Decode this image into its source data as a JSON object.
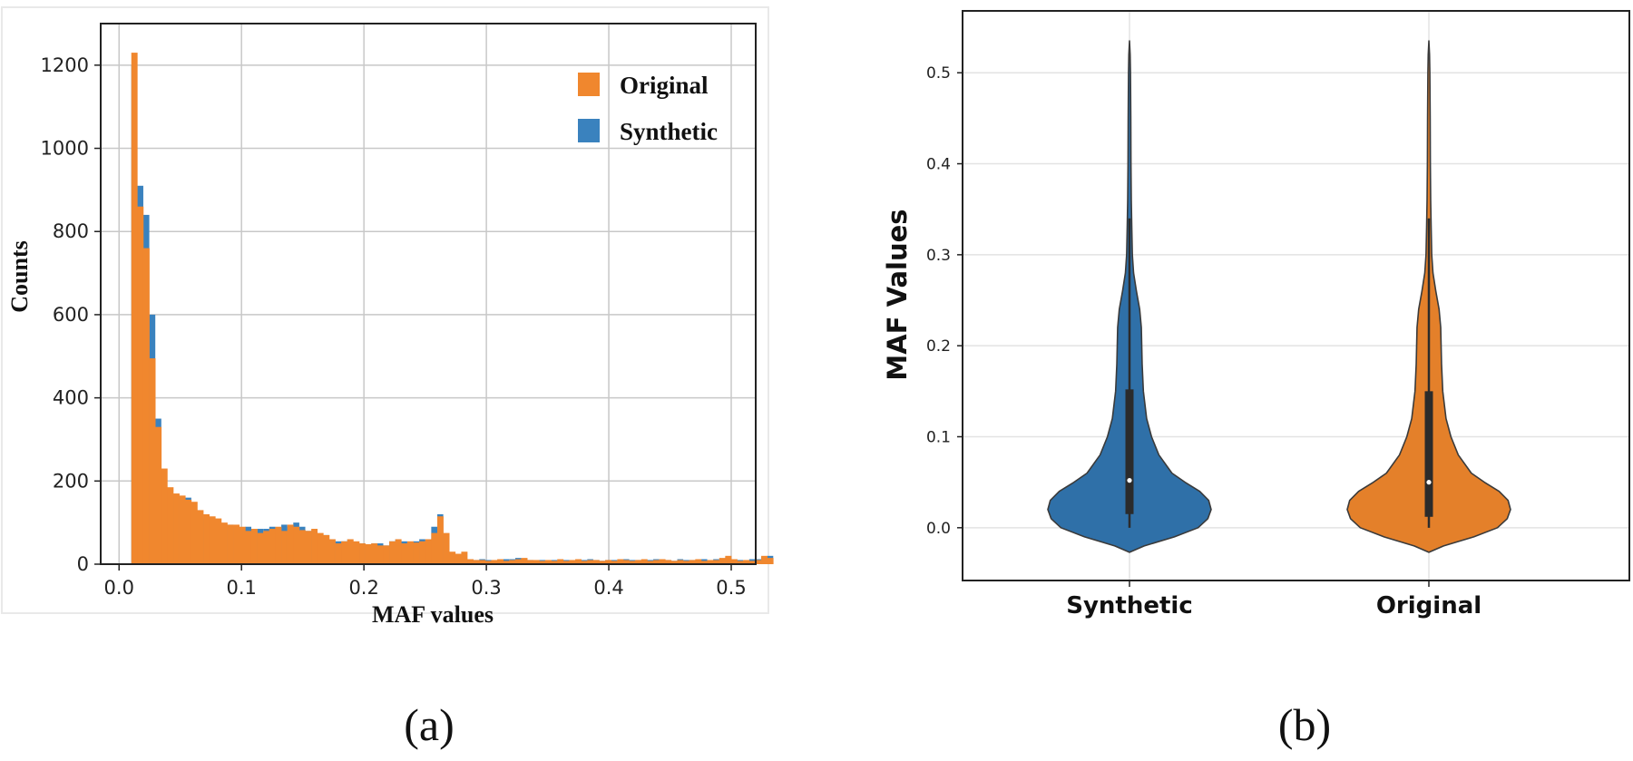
{
  "colors": {
    "original": "#F0872E",
    "synthetic": "#3A82BE",
    "violin_synthetic": "#2F70A8",
    "violin_original": "#E4802A",
    "grid_a": "#c8c8c8",
    "grid_b": "#e3e3e3"
  },
  "chart_data": [
    {
      "panel_label": "(a)",
      "type": "bar",
      "subtype": "overlaid-histogram",
      "title": "",
      "xlabel": "MAF values",
      "ylabel": "Counts",
      "xlim": [
        -0.015,
        0.52
      ],
      "ylim": [
        0,
        1300
      ],
      "xticks": [
        0.0,
        0.1,
        0.2,
        0.3,
        0.4,
        0.5
      ],
      "xtick_labels": [
        "0.0",
        "0.1",
        "0.2",
        "0.3",
        "0.4",
        "0.5"
      ],
      "yticks": [
        0,
        200,
        400,
        600,
        800,
        1000,
        1200
      ],
      "ytick_labels": [
        "0",
        "200",
        "400",
        "600",
        "800",
        "1000",
        "1200"
      ],
      "grid": true,
      "legend_position": "top-right",
      "bin_start": 0.01,
      "bin_width": 0.0049,
      "series": [
        {
          "name": "Original",
          "color_key": "original",
          "values": [
            1230,
            860,
            760,
            495,
            330,
            230,
            185,
            170,
            165,
            155,
            150,
            130,
            120,
            115,
            110,
            100,
            95,
            95,
            90,
            80,
            85,
            75,
            80,
            85,
            90,
            80,
            95,
            90,
            82,
            80,
            85,
            75,
            70,
            60,
            50,
            55,
            60,
            55,
            50,
            48,
            50,
            45,
            45,
            55,
            60,
            50,
            55,
            52,
            55,
            60,
            75,
            115,
            75,
            30,
            25,
            30,
            12,
            10,
            10,
            8,
            10,
            12,
            8,
            10,
            12,
            15,
            10,
            10,
            8,
            10,
            8,
            12,
            8,
            10,
            12,
            8,
            10,
            10,
            8,
            10,
            8,
            12,
            10,
            8,
            10,
            12,
            8,
            10,
            12,
            10,
            8,
            10,
            8,
            10,
            12,
            8,
            10,
            10,
            15,
            20,
            12,
            8,
            10,
            8,
            10,
            20,
            15
          ]
        },
        {
          "name": "Synthetic",
          "color_key": "synthetic",
          "values": [
            1200,
            910,
            840,
            600,
            350,
            210,
            170,
            165,
            160,
            160,
            135,
            125,
            110,
            110,
            100,
            95,
            95,
            90,
            85,
            90,
            80,
            85,
            85,
            90,
            85,
            95,
            90,
            100,
            90,
            80,
            80,
            70,
            70,
            60,
            55,
            55,
            60,
            50,
            50,
            48,
            50,
            50,
            45,
            55,
            60,
            55,
            50,
            55,
            60,
            60,
            90,
            120,
            70,
            25,
            20,
            25,
            12,
            10,
            12,
            10,
            8,
            10,
            12,
            12,
            15,
            12,
            10,
            8,
            10,
            8,
            10,
            10,
            10,
            8,
            10,
            10,
            12,
            10,
            8,
            10,
            10,
            8,
            12,
            10,
            10,
            8,
            10,
            12,
            10,
            10,
            8,
            12,
            10,
            10,
            10,
            12,
            8,
            12,
            12,
            18,
            10,
            10,
            8,
            12,
            12,
            18,
            20
          ]
        }
      ]
    },
    {
      "panel_label": "(b)",
      "type": "violin",
      "title": "",
      "xlabel": "",
      "ylabel": "MAF Values",
      "ylim": [
        -0.058,
        0.568
      ],
      "yticks": [
        0.0,
        0.1,
        0.2,
        0.3,
        0.4,
        0.5
      ],
      "ytick_labels": [
        "0.0",
        "0.1",
        "0.2",
        "0.3",
        "0.4",
        "0.5"
      ],
      "grid": true,
      "categories": [
        "Synthetic",
        "Original"
      ],
      "violins": [
        {
          "category": "Synthetic",
          "color_key": "violin_synthetic",
          "min": -0.027,
          "max": 0.535,
          "median": 0.052,
          "q1": 0.015,
          "q3": 0.152,
          "whisker_low": 0.0,
          "whisker_high": 0.34,
          "density": [
            [
              -0.027,
              0.0
            ],
            [
              -0.02,
              0.18
            ],
            [
              -0.01,
              0.55
            ],
            [
              0.0,
              0.84
            ],
            [
              0.01,
              0.96
            ],
            [
              0.02,
              1.0
            ],
            [
              0.03,
              0.97
            ],
            [
              0.04,
              0.86
            ],
            [
              0.05,
              0.68
            ],
            [
              0.06,
              0.52
            ],
            [
              0.08,
              0.36
            ],
            [
              0.1,
              0.27
            ],
            [
              0.12,
              0.21
            ],
            [
              0.15,
              0.17
            ],
            [
              0.18,
              0.155
            ],
            [
              0.2,
              0.15
            ],
            [
              0.22,
              0.145
            ],
            [
              0.24,
              0.125
            ],
            [
              0.26,
              0.085
            ],
            [
              0.28,
              0.05
            ],
            [
              0.3,
              0.035
            ],
            [
              0.33,
              0.028
            ],
            [
              0.36,
              0.022
            ],
            [
              0.4,
              0.018
            ],
            [
              0.45,
              0.016
            ],
            [
              0.5,
              0.012
            ],
            [
              0.52,
              0.008
            ],
            [
              0.535,
              0.0
            ]
          ]
        },
        {
          "category": "Original",
          "color_key": "violin_original",
          "min": -0.027,
          "max": 0.535,
          "median": 0.05,
          "q1": 0.012,
          "q3": 0.15,
          "whisker_low": 0.0,
          "whisker_high": 0.34,
          "density": [
            [
              -0.027,
              0.0
            ],
            [
              -0.02,
              0.18
            ],
            [
              -0.01,
              0.55
            ],
            [
              0.0,
              0.84
            ],
            [
              0.01,
              0.96
            ],
            [
              0.02,
              1.0
            ],
            [
              0.03,
              0.97
            ],
            [
              0.04,
              0.86
            ],
            [
              0.05,
              0.68
            ],
            [
              0.06,
              0.52
            ],
            [
              0.08,
              0.36
            ],
            [
              0.1,
              0.27
            ],
            [
              0.12,
              0.21
            ],
            [
              0.15,
              0.17
            ],
            [
              0.18,
              0.155
            ],
            [
              0.2,
              0.15
            ],
            [
              0.22,
              0.145
            ],
            [
              0.24,
              0.125
            ],
            [
              0.26,
              0.085
            ],
            [
              0.28,
              0.05
            ],
            [
              0.3,
              0.035
            ],
            [
              0.33,
              0.028
            ],
            [
              0.36,
              0.022
            ],
            [
              0.4,
              0.018
            ],
            [
              0.45,
              0.016
            ],
            [
              0.5,
              0.012
            ],
            [
              0.52,
              0.008
            ],
            [
              0.535,
              0.0
            ]
          ]
        }
      ]
    }
  ]
}
